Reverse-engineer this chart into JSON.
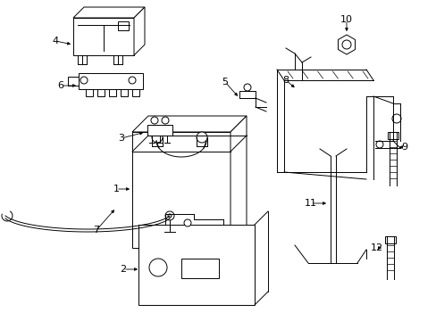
{
  "bg_color": "#ffffff",
  "line_color": "#000000",
  "label_color": "#000000",
  "figsize": [
    4.89,
    3.6
  ],
  "dpi": 100
}
